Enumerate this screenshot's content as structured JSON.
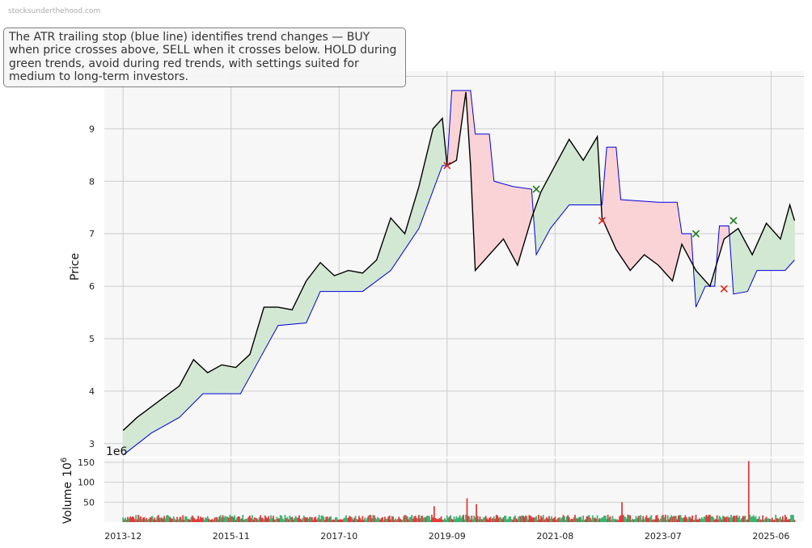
{
  "watermark": "stocksunderthehood.com",
  "annotation": "The ATR trailing stop (blue line) identifies trend changes — BUY when price crosses above, SELL when it crosses below. HOLD during green trends, avoid during red trends, with settings suited for medium to long-term investors.",
  "colors": {
    "price": "#000000",
    "stop": "#0000dd",
    "buy_fill": "#d3e8d3",
    "sell_fill": "#f9d3d6",
    "buy_marker": "#1a7a1a",
    "sell_marker": "#dd2222",
    "grid": "#cccccc",
    "plot_bg": "#f7f7f7",
    "vol_up": "#3cb371",
    "vol_down": "#e03c3c"
  },
  "chart_data": [
    {
      "type": "line",
      "title": "",
      "ylabel": "Price",
      "ylim": [
        2.75,
        10.1
      ],
      "yticks": [
        3,
        4,
        5,
        6,
        7,
        8,
        9,
        10
      ],
      "xlim": [
        "2013-08",
        "2026-01"
      ],
      "xticks": [
        "2013-12",
        "2015-11",
        "2017-10",
        "2019-09",
        "2021-08",
        "2023-07",
        "2025-06"
      ],
      "grid": true,
      "series": [
        {
          "role": "price",
          "points": [
            [
              "2013-12",
              3.25
            ],
            [
              "2014-03",
              3.5
            ],
            [
              "2014-06",
              3.7
            ],
            [
              "2014-09",
              3.9
            ],
            [
              "2014-12",
              4.1
            ],
            [
              "2015-03",
              4.6
            ],
            [
              "2015-06",
              4.35
            ],
            [
              "2015-09",
              4.5
            ],
            [
              "2015-12",
              4.45
            ],
            [
              "2016-03",
              4.7
            ],
            [
              "2016-06",
              5.6
            ],
            [
              "2016-09",
              5.6
            ],
            [
              "2016-12",
              5.55
            ],
            [
              "2017-03",
              6.1
            ],
            [
              "2017-06",
              6.45
            ],
            [
              "2017-09",
              6.2
            ],
            [
              "2017-12",
              6.3
            ],
            [
              "2018-03",
              6.25
            ],
            [
              "2018-06",
              6.5
            ],
            [
              "2018-09",
              7.3
            ],
            [
              "2018-12",
              7.0
            ],
            [
              "2019-03",
              7.9
            ],
            [
              "2019-06",
              9.0
            ],
            [
              "2019-08",
              9.2
            ],
            [
              "2019-09",
              8.3
            ],
            [
              "2019-11",
              8.4
            ],
            [
              "2020-01",
              9.7
            ],
            [
              "2020-02",
              8.3
            ],
            [
              "2020-03",
              6.3
            ],
            [
              "2020-06",
              6.6
            ],
            [
              "2020-09",
              6.9
            ],
            [
              "2020-12",
              6.4
            ],
            [
              "2021-03",
              7.3
            ],
            [
              "2021-05",
              7.8
            ],
            [
              "2021-08",
              8.3
            ],
            [
              "2021-11",
              8.8
            ],
            [
              "2022-02",
              8.4
            ],
            [
              "2022-05",
              8.85
            ],
            [
              "2022-06",
              7.3
            ],
            [
              "2022-09",
              6.7
            ],
            [
              "2022-12",
              6.3
            ],
            [
              "2023-03",
              6.6
            ],
            [
              "2023-06",
              6.4
            ],
            [
              "2023-09",
              6.1
            ],
            [
              "2023-11",
              6.8
            ],
            [
              "2024-02",
              6.3
            ],
            [
              "2024-05",
              6.0
            ],
            [
              "2024-08",
              6.9
            ],
            [
              "2024-11",
              7.1
            ],
            [
              "2025-02",
              6.6
            ],
            [
              "2025-05",
              7.2
            ],
            [
              "2025-08",
              6.9
            ],
            [
              "2025-10",
              7.55
            ],
            [
              "2025-11",
              7.25
            ]
          ]
        },
        {
          "role": "atr_trailing_stop",
          "points": [
            [
              "2013-12",
              2.78
            ],
            [
              "2014-06",
              3.2
            ],
            [
              "2014-12",
              3.5
            ],
            [
              "2015-05",
              3.95
            ],
            [
              "2016-01",
              3.95
            ],
            [
              "2016-05",
              4.6
            ],
            [
              "2016-09",
              5.25
            ],
            [
              "2017-03",
              5.3
            ],
            [
              "2017-06",
              5.9
            ],
            [
              "2018-03",
              5.9
            ],
            [
              "2018-09",
              6.3
            ],
            [
              "2019-03",
              7.1
            ],
            [
              "2019-08",
              8.3
            ],
            [
              "2019-09",
              8.3
            ],
            [
              "2019-10",
              9.73
            ],
            [
              "2020-02",
              9.73
            ],
            [
              "2020-03",
              8.9
            ],
            [
              "2020-06",
              8.9
            ],
            [
              "2020-07",
              8.0
            ],
            [
              "2020-11",
              7.9
            ],
            [
              "2021-03",
              7.85
            ],
            [
              "2021-04",
              6.6
            ],
            [
              "2021-07",
              7.1
            ],
            [
              "2021-11",
              7.55
            ],
            [
              "2022-06",
              7.55
            ],
            [
              "2022-07",
              8.65
            ],
            [
              "2022-09",
              8.65
            ],
            [
              "2022-10",
              7.65
            ],
            [
              "2023-06",
              7.6
            ],
            [
              "2023-10",
              7.6
            ],
            [
              "2023-11",
              7.0
            ],
            [
              "2024-01",
              7.0
            ],
            [
              "2024-02",
              5.6
            ],
            [
              "2024-04",
              6.0
            ],
            [
              "2024-06",
              6.0
            ],
            [
              "2024-07",
              7.15
            ],
            [
              "2024-09",
              7.15
            ],
            [
              "2024-10",
              5.85
            ],
            [
              "2025-01",
              5.9
            ],
            [
              "2025-03",
              6.3
            ],
            [
              "2025-09",
              6.3
            ],
            [
              "2025-11",
              6.5
            ]
          ]
        }
      ],
      "buy_signals": [
        [
          "2021-04",
          7.85
        ],
        [
          "2024-02",
          7.0
        ],
        [
          "2024-10",
          7.25
        ]
      ],
      "sell_signals": [
        [
          "2019-09",
          8.3
        ],
        [
          "2022-06",
          7.25
        ],
        [
          "2024-08",
          5.95
        ]
      ]
    },
    {
      "type": "bar",
      "ylabel": "Volume",
      "unit_exponent": "1e6",
      "axis_unit": "10^6",
      "ylim": [
        0,
        160
      ],
      "yticks": [
        50,
        100,
        150
      ],
      "spikes": [
        [
          "2019-06",
          40
        ],
        [
          "2020-01",
          60
        ],
        [
          "2020-03",
          45
        ],
        [
          "2022-10",
          50
        ],
        [
          "2025-01",
          153
        ]
      ],
      "typical_volume": 15
    }
  ]
}
